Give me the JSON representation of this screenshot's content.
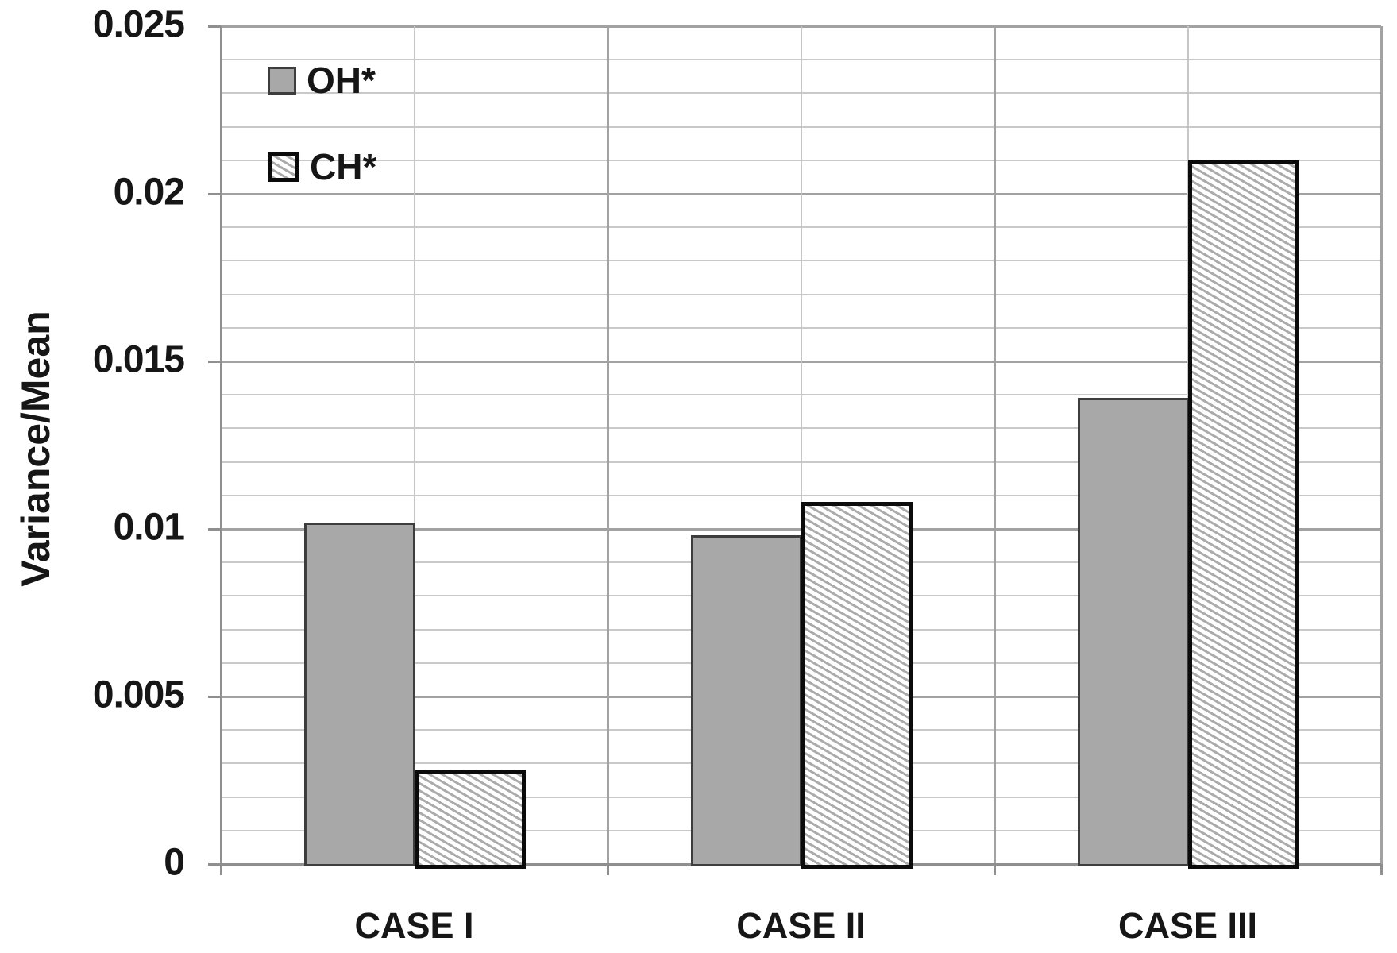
{
  "chart_data": {
    "type": "bar",
    "title": "",
    "xlabel": "",
    "ylabel": "Variance/Mean",
    "categories": [
      "CASE I",
      "CASE II",
      "CASE III"
    ],
    "series": [
      {
        "name": "OH*",
        "pattern": "solid",
        "fill": "#a8a8a8",
        "edge": "#3d3d3d",
        "values": [
          0.0102,
          0.0098,
          0.0139
        ]
      },
      {
        "name": "CH*",
        "pattern": "diagonal-hatch",
        "fill": "#ffffff",
        "hatch_color": "#ababab",
        "edge": "#0b0b0b",
        "values": [
          0.0028,
          0.0108,
          0.021
        ]
      }
    ],
    "ylim": [
      0,
      0.025
    ],
    "ytick_major": 0.005,
    "ytick_minor": 0.001,
    "ytick_labels": [
      "0",
      "0.005",
      "0.01",
      "0.015",
      "0.02",
      "0.025"
    ],
    "grid": true,
    "gridline_minor_color": "#c9c9c9",
    "gridline_major_color": "#a2a2a2",
    "axis_color": "#8f8f8f",
    "text_color": "#161616",
    "legend_position": "top-left"
  }
}
